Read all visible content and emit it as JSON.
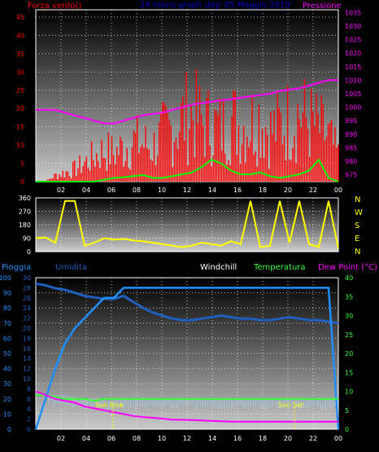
{
  "header": {
    "left_title": "Forza vento()",
    "center_title": "24 hours graph day: 05 Maggio 2019",
    "right_title": "Pressione"
  },
  "bottom_header": {
    "pioggia": "Pioggia",
    "umidita": "Umidita",
    "windchill": "Windchill",
    "temperatura": "Temperatura",
    "dewpoint": "Dew Point (°C)"
  },
  "compass": [
    "N",
    "W",
    "S",
    "E",
    "N"
  ],
  "annotations": {
    "sunrise": "Sun Rise",
    "sunset": "Sun Set"
  },
  "colors": {
    "wind": "#ff0000",
    "gust": "#00ff00",
    "pressure": "#ff00ff",
    "direction": "#ffff00",
    "humidity": "#1f5fbf",
    "rain": "#1e90ff",
    "temperature": "#33ff33",
    "dewpoint": "#ff00ff",
    "windchill": "#ffffff"
  },
  "chart_data": [
    {
      "type": "line",
      "title": "24 hours graph day: 05 Maggio 2019",
      "x_ticks": [
        "02",
        "04",
        "06",
        "08",
        "10",
        "12",
        "14",
        "16",
        "18",
        "20",
        "22",
        "00"
      ],
      "y_left": {
        "label": "Forza vento()",
        "ticks": [
          0,
          5,
          10,
          15,
          20,
          25,
          30,
          35,
          40,
          45
        ],
        "range": [
          0,
          47
        ]
      },
      "y_right": {
        "label": "Pressione",
        "ticks": [
          975,
          980,
          985,
          990,
          995,
          1000,
          1005,
          1010,
          1015,
          1020,
          1025,
          1030,
          1035
        ],
        "range": [
          972.5,
          1036
        ]
      },
      "series": [
        {
          "name": "Forza vento()",
          "values": [
            0,
            0,
            2,
            3,
            4,
            6,
            8,
            10,
            9,
            11,
            13,
            12,
            11,
            15,
            17,
            20,
            22,
            19,
            18,
            17,
            20,
            18,
            19,
            21,
            16,
            18,
            20,
            22,
            19,
            17,
            14,
            8
          ]
        },
        {
          "values": [
            0,
            0,
            0,
            0,
            0,
            0,
            0,
            0.5,
            1,
            1.2,
            1.5,
            1.8,
            1,
            1,
            1.5,
            2,
            2.5,
            4,
            6,
            5,
            3,
            2,
            2,
            2.5,
            1.5,
            1,
            1.5,
            2,
            3,
            6,
            1,
            0
          ]
        },
        {
          "name": "Pressione",
          "values": [
            999,
            999,
            999,
            998,
            997,
            996,
            995,
            994,
            994,
            995,
            996,
            997,
            997.5,
            998,
            999,
            1000,
            1001,
            1001.5,
            1002,
            1002.5,
            1003,
            1003.5,
            1004,
            1004.5,
            1005,
            1006,
            1006.5,
            1007,
            1008,
            1009,
            1010,
            1010
          ]
        }
      ]
    },
    {
      "type": "line",
      "x_ticks": [
        "02",
        "04",
        "06",
        "08",
        "10",
        "12",
        "14",
        "16",
        "18",
        "20",
        "22",
        "00"
      ],
      "y_ticks": [
        0,
        90,
        180,
        270,
        360
      ],
      "range": [
        0,
        360
      ],
      "series": [
        {
          "values": [
            90,
            95,
            60,
            340,
            340,
            40,
            60,
            90,
            80,
            85,
            75,
            70,
            60,
            50,
            40,
            30,
            40,
            60,
            50,
            40,
            70,
            50,
            340,
            30,
            40,
            340,
            60,
            340,
            50,
            30,
            340,
            20
          ]
        }
      ]
    },
    {
      "type": "line",
      "x_ticks": [
        "02",
        "04",
        "06",
        "08",
        "10",
        "12",
        "14",
        "16",
        "18",
        "20",
        "22",
        "00"
      ],
      "y_left_outer": {
        "label": "Pioggia",
        "ticks": [
          0,
          10,
          20,
          30,
          40,
          50,
          60,
          70,
          80,
          90,
          100
        ],
        "range": [
          0,
          100
        ]
      },
      "y_left_inner": {
        "label": "Umidita",
        "ticks": [
          0,
          2,
          4,
          6,
          8,
          10,
          12,
          14,
          16,
          18,
          20,
          22,
          24,
          26,
          28,
          30
        ],
        "range": [
          0,
          30
        ]
      },
      "y_right": {
        "label": "Temperatura",
        "ticks": [
          0,
          5,
          10,
          15,
          20,
          25,
          30,
          35,
          40
        ],
        "range": [
          0,
          40
        ]
      },
      "series": [
        {
          "name": "Umidita",
          "values": [
            96,
            95,
            93,
            92,
            90,
            88,
            87,
            86,
            86,
            88,
            84,
            80,
            77,
            75,
            73,
            72,
            72,
            73,
            74,
            75,
            74,
            73,
            73,
            72,
            72,
            73,
            74,
            73,
            72,
            72,
            71,
            70
          ]
        },
        {
          "name": "Pioggia",
          "values": [
            0,
            6,
            12,
            17,
            20,
            22,
            24,
            26,
            26,
            28,
            28,
            28,
            28,
            28,
            28,
            28,
            28,
            28,
            28,
            28,
            28,
            28,
            28,
            28,
            28,
            28,
            28,
            28,
            28,
            28,
            28,
            0
          ]
        },
        {
          "name": "Temperatura",
          "values": [
            9,
            9,
            8.5,
            8,
            8,
            8,
            7.5,
            8,
            8,
            8,
            8,
            8,
            8,
            8,
            8,
            8,
            8,
            8,
            8,
            8,
            8,
            8,
            8,
            8,
            8,
            8,
            8,
            8,
            8,
            8,
            8,
            8
          ]
        },
        {
          "name": "Dew Point (°C)",
          "values": [
            10,
            9,
            8,
            7.5,
            7,
            6,
            5.5,
            5,
            4.5,
            4,
            3.5,
            3.2,
            3,
            2.8,
            2.5,
            2.5,
            2.4,
            2.3,
            2.2,
            2.1,
            2,
            2,
            2,
            2,
            2,
            2,
            2,
            2,
            2,
            2,
            2,
            2
          ]
        },
        {
          "name": "Windchill",
          "values": [
            9,
            9,
            8.5,
            8,
            8,
            8,
            7.5,
            8,
            8,
            8,
            8,
            8,
            8,
            8,
            8,
            8,
            8,
            8,
            8,
            8,
            8,
            8,
            8,
            8,
            8,
            8,
            8,
            8,
            8,
            8,
            8,
            8
          ]
        }
      ]
    }
  ]
}
